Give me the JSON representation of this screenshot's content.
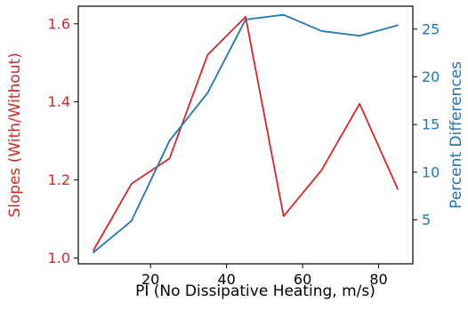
{
  "chart_data": {
    "type": "line",
    "title": "",
    "xlabel": "PI (No Dissipative Heating, m/s)",
    "ylabel_left": "Slopes (With/Without)",
    "ylabel_right": "Percent Differences",
    "xlim": [
      1.0,
      89.0
    ],
    "ylim_left": [
      0.985,
      1.645
    ],
    "ylim_right": [
      0.4,
      27.4
    ],
    "x_ticks": [
      20,
      40,
      60,
      80
    ],
    "y_left_ticks": [
      1.0,
      1.2,
      1.4,
      1.6
    ],
    "y_right_ticks": [
      5,
      10,
      15,
      20,
      25
    ],
    "grid": false,
    "colors": {
      "left_series": "#d62728",
      "right_series": "#1f77b4",
      "axes": "#000000"
    },
    "x": [
      5,
      15,
      25,
      35,
      45,
      55,
      65,
      75,
      85
    ],
    "series": [
      {
        "axis": "left",
        "values": [
          1.02,
          1.19,
          1.255,
          1.52,
          1.618,
          1.107,
          1.225,
          1.395,
          1.177
        ]
      },
      {
        "axis": "right",
        "values": [
          1.6,
          4.9,
          13.3,
          18.3,
          26.0,
          26.5,
          24.8,
          24.3,
          25.4
        ]
      }
    ]
  }
}
